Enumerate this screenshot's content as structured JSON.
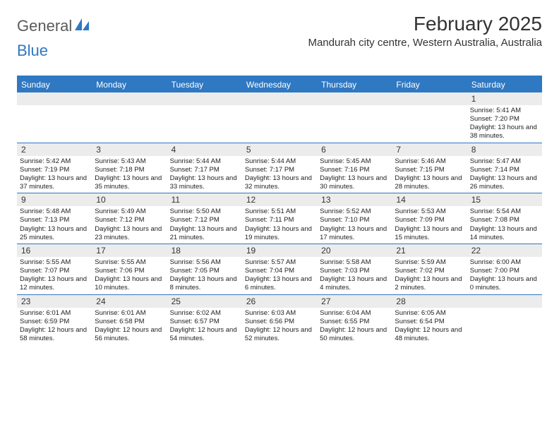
{
  "logo": {
    "general": "General",
    "blue": "Blue"
  },
  "title": "February 2025",
  "location": "Mandurah city centre, Western Australia, Australia",
  "colors": {
    "header_bg": "#2f78c2",
    "daynum_bg": "#ececec",
    "page_bg": "#ffffff",
    "text": "#333333"
  },
  "weekdays": [
    "Sunday",
    "Monday",
    "Tuesday",
    "Wednesday",
    "Thursday",
    "Friday",
    "Saturday"
  ],
  "weeks": [
    [
      null,
      null,
      null,
      null,
      null,
      null,
      {
        "n": "1",
        "sunrise": "Sunrise: 5:41 AM",
        "sunset": "Sunset: 7:20 PM",
        "day": "Daylight: 13 hours and 38 minutes."
      }
    ],
    [
      {
        "n": "2",
        "sunrise": "Sunrise: 5:42 AM",
        "sunset": "Sunset: 7:19 PM",
        "day": "Daylight: 13 hours and 37 minutes."
      },
      {
        "n": "3",
        "sunrise": "Sunrise: 5:43 AM",
        "sunset": "Sunset: 7:18 PM",
        "day": "Daylight: 13 hours and 35 minutes."
      },
      {
        "n": "4",
        "sunrise": "Sunrise: 5:44 AM",
        "sunset": "Sunset: 7:17 PM",
        "day": "Daylight: 13 hours and 33 minutes."
      },
      {
        "n": "5",
        "sunrise": "Sunrise: 5:44 AM",
        "sunset": "Sunset: 7:17 PM",
        "day": "Daylight: 13 hours and 32 minutes."
      },
      {
        "n": "6",
        "sunrise": "Sunrise: 5:45 AM",
        "sunset": "Sunset: 7:16 PM",
        "day": "Daylight: 13 hours and 30 minutes."
      },
      {
        "n": "7",
        "sunrise": "Sunrise: 5:46 AM",
        "sunset": "Sunset: 7:15 PM",
        "day": "Daylight: 13 hours and 28 minutes."
      },
      {
        "n": "8",
        "sunrise": "Sunrise: 5:47 AM",
        "sunset": "Sunset: 7:14 PM",
        "day": "Daylight: 13 hours and 26 minutes."
      }
    ],
    [
      {
        "n": "9",
        "sunrise": "Sunrise: 5:48 AM",
        "sunset": "Sunset: 7:13 PM",
        "day": "Daylight: 13 hours and 25 minutes."
      },
      {
        "n": "10",
        "sunrise": "Sunrise: 5:49 AM",
        "sunset": "Sunset: 7:12 PM",
        "day": "Daylight: 13 hours and 23 minutes."
      },
      {
        "n": "11",
        "sunrise": "Sunrise: 5:50 AM",
        "sunset": "Sunset: 7:12 PM",
        "day": "Daylight: 13 hours and 21 minutes."
      },
      {
        "n": "12",
        "sunrise": "Sunrise: 5:51 AM",
        "sunset": "Sunset: 7:11 PM",
        "day": "Daylight: 13 hours and 19 minutes."
      },
      {
        "n": "13",
        "sunrise": "Sunrise: 5:52 AM",
        "sunset": "Sunset: 7:10 PM",
        "day": "Daylight: 13 hours and 17 minutes."
      },
      {
        "n": "14",
        "sunrise": "Sunrise: 5:53 AM",
        "sunset": "Sunset: 7:09 PM",
        "day": "Daylight: 13 hours and 15 minutes."
      },
      {
        "n": "15",
        "sunrise": "Sunrise: 5:54 AM",
        "sunset": "Sunset: 7:08 PM",
        "day": "Daylight: 13 hours and 14 minutes."
      }
    ],
    [
      {
        "n": "16",
        "sunrise": "Sunrise: 5:55 AM",
        "sunset": "Sunset: 7:07 PM",
        "day": "Daylight: 13 hours and 12 minutes."
      },
      {
        "n": "17",
        "sunrise": "Sunrise: 5:55 AM",
        "sunset": "Sunset: 7:06 PM",
        "day": "Daylight: 13 hours and 10 minutes."
      },
      {
        "n": "18",
        "sunrise": "Sunrise: 5:56 AM",
        "sunset": "Sunset: 7:05 PM",
        "day": "Daylight: 13 hours and 8 minutes."
      },
      {
        "n": "19",
        "sunrise": "Sunrise: 5:57 AM",
        "sunset": "Sunset: 7:04 PM",
        "day": "Daylight: 13 hours and 6 minutes."
      },
      {
        "n": "20",
        "sunrise": "Sunrise: 5:58 AM",
        "sunset": "Sunset: 7:03 PM",
        "day": "Daylight: 13 hours and 4 minutes."
      },
      {
        "n": "21",
        "sunrise": "Sunrise: 5:59 AM",
        "sunset": "Sunset: 7:02 PM",
        "day": "Daylight: 13 hours and 2 minutes."
      },
      {
        "n": "22",
        "sunrise": "Sunrise: 6:00 AM",
        "sunset": "Sunset: 7:00 PM",
        "day": "Daylight: 13 hours and 0 minutes."
      }
    ],
    [
      {
        "n": "23",
        "sunrise": "Sunrise: 6:01 AM",
        "sunset": "Sunset: 6:59 PM",
        "day": "Daylight: 12 hours and 58 minutes."
      },
      {
        "n": "24",
        "sunrise": "Sunrise: 6:01 AM",
        "sunset": "Sunset: 6:58 PM",
        "day": "Daylight: 12 hours and 56 minutes."
      },
      {
        "n": "25",
        "sunrise": "Sunrise: 6:02 AM",
        "sunset": "Sunset: 6:57 PM",
        "day": "Daylight: 12 hours and 54 minutes."
      },
      {
        "n": "26",
        "sunrise": "Sunrise: 6:03 AM",
        "sunset": "Sunset: 6:56 PM",
        "day": "Daylight: 12 hours and 52 minutes."
      },
      {
        "n": "27",
        "sunrise": "Sunrise: 6:04 AM",
        "sunset": "Sunset: 6:55 PM",
        "day": "Daylight: 12 hours and 50 minutes."
      },
      {
        "n": "28",
        "sunrise": "Sunrise: 6:05 AM",
        "sunset": "Sunset: 6:54 PM",
        "day": "Daylight: 12 hours and 48 minutes."
      },
      null
    ]
  ]
}
